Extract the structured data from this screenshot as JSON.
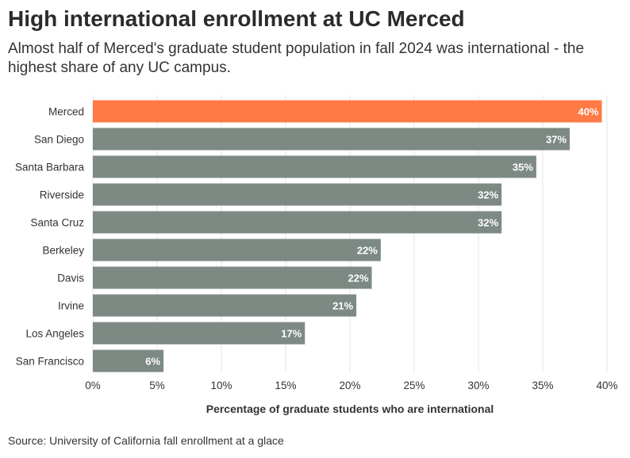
{
  "title": "High international enrollment at UC Merced",
  "subtitle": "Almost half of Merced's graduate student population in fall 2024 was international - the highest share of any UC campus.",
  "source": "Source: University of California fall enrollment at a glace",
  "chart_data": {
    "type": "bar",
    "orientation": "horizontal",
    "categories": [
      "Merced",
      "San Diego",
      "Santa Barbara",
      "Riverside",
      "Santa Cruz",
      "Berkeley",
      "Davis",
      "Irvine",
      "Los Angeles",
      "San Francisco"
    ],
    "values": [
      39.6,
      37.1,
      34.5,
      31.8,
      31.8,
      22.4,
      21.7,
      20.5,
      16.5,
      5.5
    ],
    "value_labels": [
      "40%",
      "37%",
      "35%",
      "32%",
      "32%",
      "22%",
      "22%",
      "21%",
      "17%",
      "6%"
    ],
    "xlabel": "Percentage of graduate students who are international",
    "xlim": [
      0,
      40
    ],
    "xticks": [
      "0%",
      "5%",
      "10%",
      "15%",
      "20%",
      "25%",
      "30%",
      "35%",
      "40%"
    ],
    "grid": true,
    "colors": {
      "highlight": "#ff7a45",
      "default": "#7d8a84"
    },
    "highlight_index": 0
  }
}
